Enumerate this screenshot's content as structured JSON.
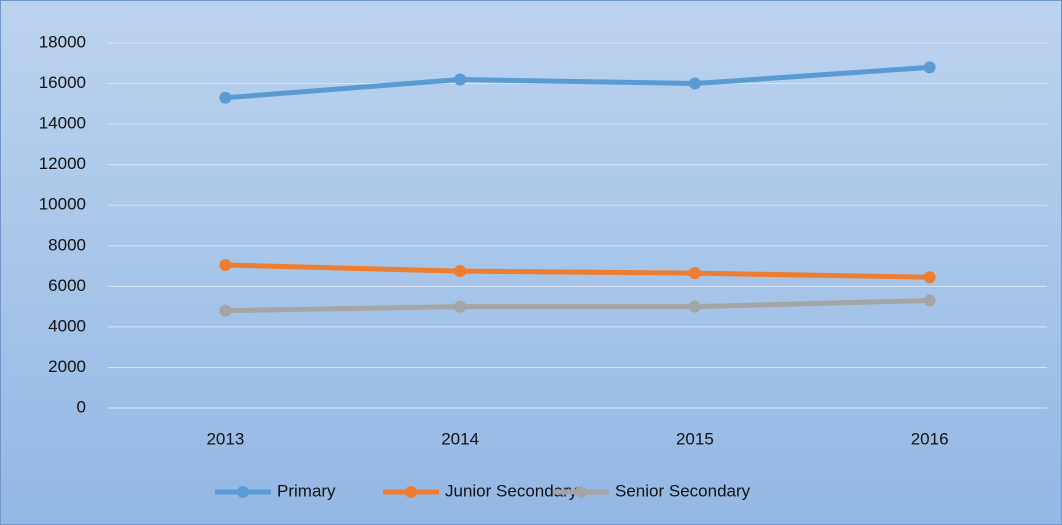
{
  "chart_data": {
    "type": "line",
    "categories": [
      "2013",
      "2014",
      "2015",
      "2016"
    ],
    "series": [
      {
        "name": "Primary",
        "color": "#5b9bd5",
        "values": [
          15300,
          16200,
          16000,
          16800
        ]
      },
      {
        "name": "Junior Secondary",
        "color": "#ed7d31",
        "values": [
          7050,
          6750,
          6650,
          6450
        ]
      },
      {
        "name": "Senior Secondary",
        "color": "#a5a5a5",
        "values": [
          4800,
          5000,
          5000,
          5300
        ]
      }
    ],
    "ylim": [
      0,
      18000
    ],
    "yticks": [
      0,
      2000,
      4000,
      6000,
      8000,
      10000,
      12000,
      14000,
      16000,
      18000
    ],
    "grid": true,
    "legend": "bottom"
  }
}
